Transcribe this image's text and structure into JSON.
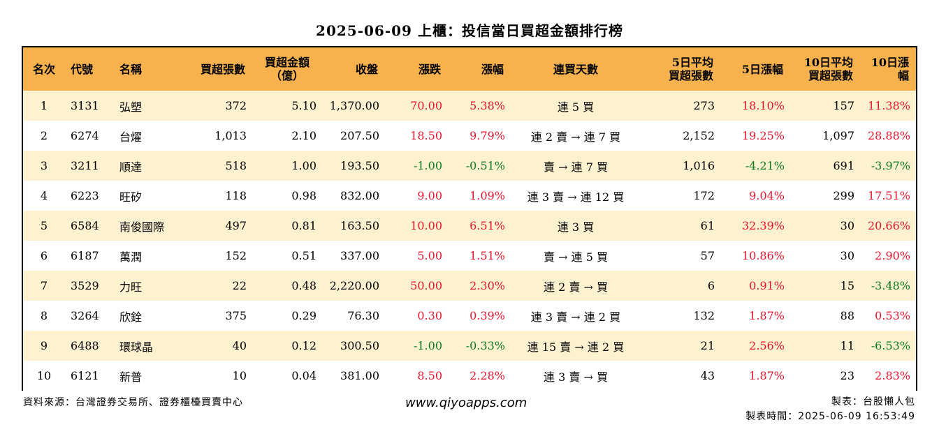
{
  "title": "2025-06-09 上櫃：投信當日買超金額排行榜",
  "headers": {
    "rank": "名次",
    "code": "代號",
    "name": "名稱",
    "net_buy_shares": "買超張數",
    "net_buy_amount_line1": "買超金額",
    "net_buy_amount_line2": "（億）",
    "close": "收盤",
    "change": "漲跌",
    "change_pct": "漲幅",
    "streak": "連買天數",
    "avg5_line1": "5日平均",
    "avg5_line2": "買超張數",
    "chg5": "5日漲幅",
    "avg10_line1": "10日平均",
    "avg10_line2": "買超張數",
    "chg10": "10日漲幅"
  },
  "rows": [
    {
      "rank": "1",
      "code": "3131",
      "name": "弘塑",
      "shares": "372",
      "amount": "5.10",
      "close": "1,370.00",
      "change": "70.00",
      "change_pct": "5.38%",
      "streak": "連 5 買",
      "avg5": "273",
      "chg5": "18.10%",
      "avg10": "157",
      "chg10": "11.38%"
    },
    {
      "rank": "2",
      "code": "6274",
      "name": "台燿",
      "shares": "1,013",
      "amount": "2.10",
      "close": "207.50",
      "change": "18.50",
      "change_pct": "9.79%",
      "streak": "連 2 賣 → 連 7 買",
      "avg5": "2,152",
      "chg5": "19.25%",
      "avg10": "1,097",
      "chg10": "28.88%"
    },
    {
      "rank": "3",
      "code": "3211",
      "name": "順達",
      "shares": "518",
      "amount": "1.00",
      "close": "193.50",
      "change": "-1.00",
      "change_pct": "-0.51%",
      "streak": "賣 → 連 7 買",
      "avg5": "1,016",
      "chg5": "-4.21%",
      "avg10": "691",
      "chg10": "-3.97%"
    },
    {
      "rank": "4",
      "code": "6223",
      "name": "旺矽",
      "shares": "118",
      "amount": "0.98",
      "close": "832.00",
      "change": "9.00",
      "change_pct": "1.09%",
      "streak": "連 3 賣 → 連 12 買",
      "avg5": "172",
      "chg5": "9.04%",
      "avg10": "299",
      "chg10": "17.51%"
    },
    {
      "rank": "5",
      "code": "6584",
      "name": "南俊國際",
      "shares": "497",
      "amount": "0.81",
      "close": "163.50",
      "change": "10.00",
      "change_pct": "6.51%",
      "streak": "連 3 買",
      "avg5": "61",
      "chg5": "32.39%",
      "avg10": "30",
      "chg10": "20.66%"
    },
    {
      "rank": "6",
      "code": "6187",
      "name": "萬潤",
      "shares": "152",
      "amount": "0.51",
      "close": "337.00",
      "change": "5.00",
      "change_pct": "1.51%",
      "streak": "賣 → 連 5 買",
      "avg5": "57",
      "chg5": "10.86%",
      "avg10": "30",
      "chg10": "2.90%"
    },
    {
      "rank": "7",
      "code": "3529",
      "name": "力旺",
      "shares": "22",
      "amount": "0.48",
      "close": "2,220.00",
      "change": "50.00",
      "change_pct": "2.30%",
      "streak": "連 2 賣 → 買",
      "avg5": "6",
      "chg5": "0.91%",
      "avg10": "15",
      "chg10": "-3.48%"
    },
    {
      "rank": "8",
      "code": "3264",
      "name": "欣銓",
      "shares": "375",
      "amount": "0.29",
      "close": "76.30",
      "change": "0.30",
      "change_pct": "0.39%",
      "streak": "連 3 賣 → 連 2 買",
      "avg5": "132",
      "chg5": "1.87%",
      "avg10": "88",
      "chg10": "0.53%"
    },
    {
      "rank": "9",
      "code": "6488",
      "name": "環球晶",
      "shares": "40",
      "amount": "0.12",
      "close": "300.50",
      "change": "-1.00",
      "change_pct": "-0.33%",
      "streak": "連 15 賣 → 連 2 買",
      "avg5": "21",
      "chg5": "2.56%",
      "avg10": "11",
      "chg10": "-6.53%"
    },
    {
      "rank": "10",
      "code": "6121",
      "name": "新普",
      "shares": "10",
      "amount": "0.04",
      "close": "381.00",
      "change": "8.50",
      "change_pct": "2.28%",
      "streak": "連 3 賣 → 買",
      "avg5": "43",
      "chg5": "1.87%",
      "avg10": "23",
      "chg10": "2.83%"
    }
  ],
  "footer": {
    "source": "資料來源：台灣證券交易所、證券櫃檯買賣中心",
    "website": "www.qiyoapps.com",
    "maker": "製表：台股懶人包",
    "made_time": "製表時間：2025-06-09 16:53:49"
  },
  "colors": {
    "header_bg": "#f7b24d",
    "stripe_bg": "#fdf1cf",
    "positive": "#e8142d",
    "negative": "#0b7a1f"
  }
}
